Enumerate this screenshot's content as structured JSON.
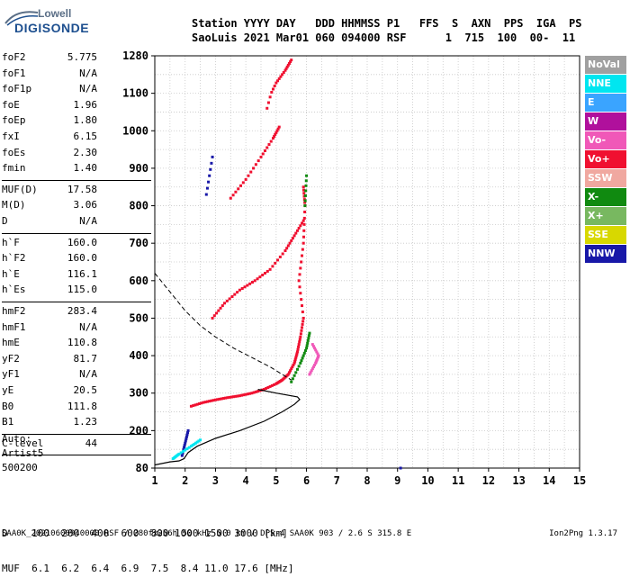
{
  "logo": {
    "top": "Lowell",
    "bottom": "DIGISONDE"
  },
  "header": {
    "line1": "Station YYYY DAY   DDD HHMMSS P1   FFS  S  AXN  PPS  IGA  PS",
    "line2": "SaoLuis 2021 Mar01 060 094000 RSF      1  715  100  00-  11"
  },
  "params": [
    {
      "name": "foF2",
      "value": "5.775"
    },
    {
      "name": "foF1",
      "value": "N/A"
    },
    {
      "name": "foF1p",
      "value": "N/A"
    },
    {
      "name": "foE",
      "value": "1.96"
    },
    {
      "name": "foEp",
      "value": "1.80"
    },
    {
      "name": "fxI",
      "value": "6.15"
    },
    {
      "name": "foEs",
      "value": "2.30"
    },
    {
      "name": "fmin",
      "value": "1.40"
    },
    {
      "name": "MUF(D)",
      "value": "17.58"
    },
    {
      "name": "M(D)",
      "value": "3.06"
    },
    {
      "name": "D",
      "value": "N/A"
    },
    {
      "name": "h`F",
      "value": "160.0"
    },
    {
      "name": "h`F2",
      "value": "160.0"
    },
    {
      "name": "h`E",
      "value": "116.1"
    },
    {
      "name": "h`Es",
      "value": "115.0"
    },
    {
      "name": "hmF2",
      "value": "283.4"
    },
    {
      "name": "hmF1",
      "value": "N/A"
    },
    {
      "name": "hmE",
      "value": "110.8"
    },
    {
      "name": "yF2",
      "value": "81.7"
    },
    {
      "name": "yF1",
      "value": "N/A"
    },
    {
      "name": "yE",
      "value": "20.5"
    },
    {
      "name": "B0",
      "value": "111.8"
    },
    {
      "name": "B1",
      "value": "1.23"
    },
    {
      "name": "C-level",
      "value": "44"
    }
  ],
  "auto": {
    "line1": "Auto:",
    "line2": "Artist5",
    "line3": "500200"
  },
  "legend": [
    {
      "label": "NoVal",
      "color": "#a0a0a0"
    },
    {
      "label": "NNE",
      "color": "#00e6f0"
    },
    {
      "label": "E",
      "color": "#3aa4ff"
    },
    {
      "label": "W",
      "color": "#b0109c"
    },
    {
      "label": "Vo-",
      "color": "#f058b8"
    },
    {
      "label": "Vo+",
      "color": "#f01030"
    },
    {
      "label": "SSW",
      "color": "#f0a8a0"
    },
    {
      "label": "X-",
      "color": "#108a10"
    },
    {
      "label": "X+",
      "color": "#78b860"
    },
    {
      "label": "SSE",
      "color": "#d8d800"
    },
    {
      "label": "NNW",
      "color": "#1818a8"
    }
  ],
  "muf_table": {
    "line1": "D    100  200  400  600  800 1000 1500 3000 [km]",
    "line2": "MUF  6.1  6.2  6.4  6.9  7.5  8.4 11.0 17.6 [MHz]"
  },
  "footer": {
    "left": "SAA0K_20210600940000.RSF / 280fx256h 50 kHz 5.0 km / DPS-4 SAA0K 903 / 2.6 S 315.8 E",
    "right": "Ion2Png 1.3.17"
  },
  "chart_data": {
    "type": "scatter",
    "x_ticks": [
      "1",
      "2",
      "3",
      "4",
      "5",
      "6",
      "7",
      "8",
      "9",
      "10",
      "11",
      "12",
      "13",
      "14",
      "15"
    ],
    "y_ticks": [
      "80",
      "200",
      "300",
      "400",
      "500",
      "600",
      "700",
      "800",
      "900",
      "1000",
      "1100",
      "1280"
    ],
    "xlim": [
      1,
      15
    ],
    "y_tick_values": [
      80,
      200,
      300,
      400,
      500,
      600,
      700,
      800,
      900,
      1000,
      1100,
      1280
    ],
    "grid": true,
    "series": [
      {
        "color": "#f01030",
        "points": [
          [
            2.2,
            265
          ],
          [
            2.6,
            275
          ],
          [
            3.0,
            282
          ],
          [
            3.4,
            288
          ],
          [
            3.8,
            293
          ],
          [
            4.2,
            300
          ],
          [
            4.6,
            310
          ],
          [
            5.0,
            325
          ],
          [
            5.2,
            335
          ],
          [
            5.4,
            350
          ],
          [
            5.6,
            380
          ],
          [
            5.7,
            410
          ],
          [
            5.8,
            450
          ],
          [
            5.9,
            500
          ],
          [
            5.75,
            600
          ],
          [
            5.9,
            700
          ],
          [
            5.95,
            800
          ],
          [
            5.9,
            850
          ]
        ]
      },
      {
        "color": "#f01030",
        "points": [
          [
            2.9,
            500
          ],
          [
            3.3,
            540
          ],
          [
            3.8,
            575
          ],
          [
            4.3,
            600
          ],
          [
            4.8,
            630
          ],
          [
            5.3,
            680
          ],
          [
            5.6,
            720
          ],
          [
            5.9,
            760
          ]
        ]
      },
      {
        "color": "#f01030",
        "points": [
          [
            3.5,
            820
          ],
          [
            4.0,
            870
          ],
          [
            4.5,
            930
          ],
          [
            4.9,
            980
          ],
          [
            5.1,
            1010
          ]
        ]
      },
      {
        "color": "#f01030",
        "points": [
          [
            4.7,
            1060
          ],
          [
            5.0,
            1150
          ],
          [
            5.3,
            1210
          ],
          [
            5.5,
            1260
          ]
        ]
      },
      {
        "color": "#108a10",
        "points": [
          [
            5.5,
            330
          ],
          [
            5.8,
            380
          ],
          [
            6.0,
            420
          ],
          [
            6.1,
            460
          ],
          [
            5.95,
            800
          ],
          [
            6.0,
            880
          ]
        ]
      },
      {
        "color": "#f058b8",
        "points": [
          [
            6.1,
            350
          ],
          [
            6.3,
            380
          ],
          [
            6.4,
            400
          ],
          [
            6.2,
            430
          ]
        ]
      },
      {
        "color": "#1818a8",
        "points": [
          [
            1.9,
            120
          ],
          [
            2.0,
            160
          ],
          [
            2.1,
            200
          ],
          [
            2.7,
            830
          ],
          [
            2.9,
            930
          ],
          [
            9.1,
            80
          ]
        ]
      },
      {
        "color": "#00e6f0",
        "points": [
          [
            1.6,
            110
          ],
          [
            1.8,
            125
          ],
          [
            2.2,
            150
          ],
          [
            2.5,
            170
          ]
        ]
      }
    ],
    "profile_solid": [
      [
        1.0,
        90
      ],
      [
        1.5,
        100
      ],
      [
        1.8,
        103
      ],
      [
        1.96,
        110
      ],
      [
        2.1,
        130
      ],
      [
        2.4,
        150
      ],
      [
        3.0,
        175
      ],
      [
        3.8,
        200
      ],
      [
        4.6,
        225
      ],
      [
        5.2,
        250
      ],
      [
        5.6,
        270
      ],
      [
        5.775,
        283
      ],
      [
        5.7,
        290
      ],
      [
        5.0,
        300
      ],
      [
        4.4,
        310
      ]
    ],
    "profile_dashed": [
      [
        1.0,
        620
      ],
      [
        1.5,
        570
      ],
      [
        2.0,
        520
      ],
      [
        2.5,
        480
      ],
      [
        3.0,
        450
      ],
      [
        3.6,
        420
      ],
      [
        4.2,
        395
      ],
      [
        4.8,
        370
      ],
      [
        5.2,
        350
      ],
      [
        5.5,
        335
      ]
    ]
  }
}
